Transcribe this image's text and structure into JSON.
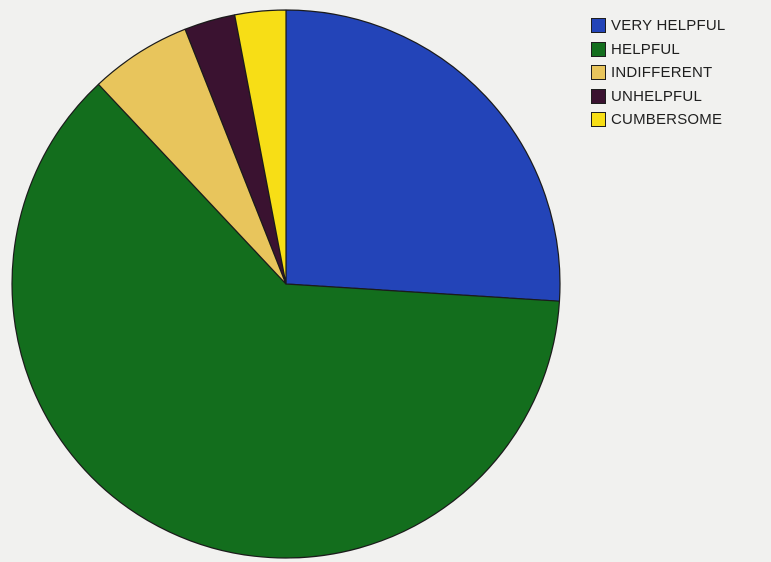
{
  "chart_data": {
    "type": "pie",
    "title": "",
    "categories": [
      "VERY HELPFUL",
      "HELPFUL",
      "INDIFFERENT",
      "UNHELPFUL",
      "CUMBERSOME"
    ],
    "values": [
      26,
      62,
      6,
      3,
      3
    ],
    "unit": "percent (estimated)",
    "colors": [
      "#2344b8",
      "#136e1d",
      "#e8c55c",
      "#3a1230",
      "#f7de16"
    ],
    "start_angle_deg": 0,
    "direction": "clockwise from 12 o'clock",
    "legend_position": "top-right"
  }
}
